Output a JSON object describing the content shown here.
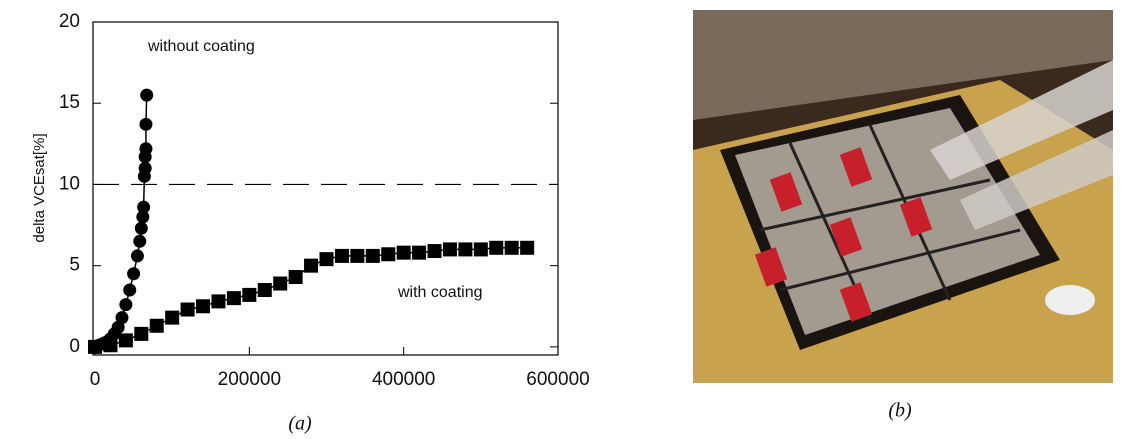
{
  "chart_data": {
    "type": "scatter",
    "ylabel": "delta VCEsat[%]",
    "xlim": [
      0,
      600000
    ],
    "ylim": [
      -0.5,
      20
    ],
    "xticks": [
      0,
      200000,
      400000,
      600000
    ],
    "yticks": [
      0,
      5,
      10,
      15,
      20
    ],
    "hline": 10,
    "series": [
      {
        "name": "without coating",
        "color": "#000000",
        "marker": "circle",
        "x": [
          0,
          5000,
          10000,
          15000,
          20000,
          25000,
          30000,
          35000,
          40000,
          45000,
          50000,
          55000,
          58000,
          60000,
          62000,
          63000,
          64000,
          65000,
          65000,
          66000,
          66000,
          67000
        ],
        "values": [
          0,
          0.1,
          0.2,
          0.3,
          0.5,
          0.8,
          1.2,
          1.8,
          2.6,
          3.5,
          4.5,
          5.6,
          6.5,
          7.3,
          8,
          8.6,
          10.5,
          11,
          11.7,
          12.2,
          13.7,
          15.5
        ]
      },
      {
        "name": "with coating",
        "color": "#000000",
        "marker": "square",
        "x": [
          0,
          20000,
          40000,
          60000,
          80000,
          100000,
          120000,
          140000,
          160000,
          180000,
          200000,
          220000,
          240000,
          260000,
          280000,
          300000,
          320000,
          340000,
          360000,
          380000,
          400000,
          420000,
          440000,
          460000,
          480000,
          500000,
          520000,
          540000,
          560000
        ],
        "values": [
          0,
          0.1,
          0.4,
          0.8,
          1.3,
          1.8,
          2.3,
          2.5,
          2.8,
          3.0,
          3.2,
          3.5,
          3.9,
          4.3,
          5.0,
          5.4,
          5.6,
          5.6,
          5.6,
          5.7,
          5.8,
          5.8,
          5.9,
          6.0,
          6.0,
          6.0,
          6.1,
          6.1,
          6.1
        ]
      }
    ]
  },
  "figure": {
    "captions": [
      "(a)",
      "(b)"
    ]
  }
}
